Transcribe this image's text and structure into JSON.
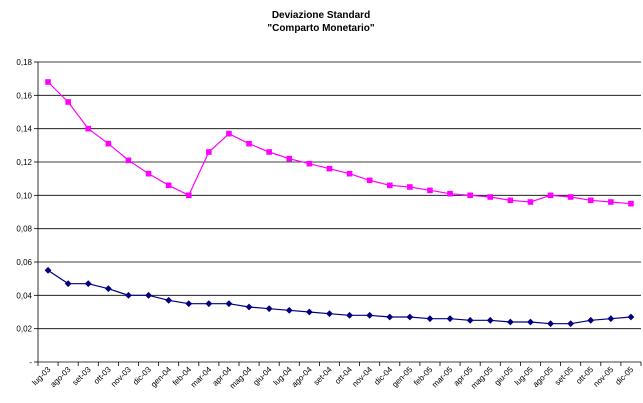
{
  "chart_data": {
    "type": "line",
    "title": "Deviazione Standard",
    "subtitle": "\"Comparto Monetario\"",
    "xlabel": "",
    "ylabel": "",
    "ylim": [
      0,
      0.18
    ],
    "yticks": [
      0,
      0.02,
      0.04,
      0.06,
      0.08,
      0.1,
      0.12,
      0.14,
      0.16,
      0.18
    ],
    "ytick_labels": [
      "-",
      "0,02",
      "0,04",
      "0,06",
      "0,08",
      "0,10",
      "0,12",
      "0,14",
      "0,16",
      "0,18"
    ],
    "grid": true,
    "legend": "none",
    "categories": [
      "lug-03",
      "ago-03",
      "set-03",
      "ott-03",
      "nov-03",
      "dic-03",
      "gen-04",
      "feb-04",
      "mar-04",
      "apr-04",
      "mag-04",
      "giu-04",
      "lug-04",
      "ago-04",
      "set-04",
      "ott-04",
      "nov-04",
      "dic-04",
      "gen-05",
      "feb-05",
      "mar-05",
      "apr-05",
      "mag-05",
      "giu-05",
      "lug-05",
      "ago-05",
      "set-05",
      "ott-05",
      "nov-05",
      "dic-05"
    ],
    "series": [
      {
        "color": "#ff00ff",
        "marker": "square",
        "values": [
          0.168,
          0.156,
          0.14,
          0.131,
          0.121,
          0.113,
          0.106,
          0.1,
          0.126,
          0.137,
          0.131,
          0.126,
          0.122,
          0.119,
          0.116,
          0.113,
          0.109,
          0.106,
          0.105,
          0.103,
          0.101,
          0.1,
          0.099,
          0.097,
          0.096,
          0.1,
          0.099,
          0.097,
          0.096,
          0.095
        ]
      },
      {
        "color": "#000080",
        "marker": "diamond",
        "values": [
          0.055,
          0.047,
          0.047,
          0.044,
          0.04,
          0.04,
          0.037,
          0.035,
          0.035,
          0.035,
          0.033,
          0.032,
          0.031,
          0.03,
          0.029,
          0.028,
          0.028,
          0.027,
          0.027,
          0.026,
          0.026,
          0.025,
          0.025,
          0.024,
          0.024,
          0.023,
          0.023,
          0.025,
          0.026,
          0.027
        ]
      }
    ]
  }
}
